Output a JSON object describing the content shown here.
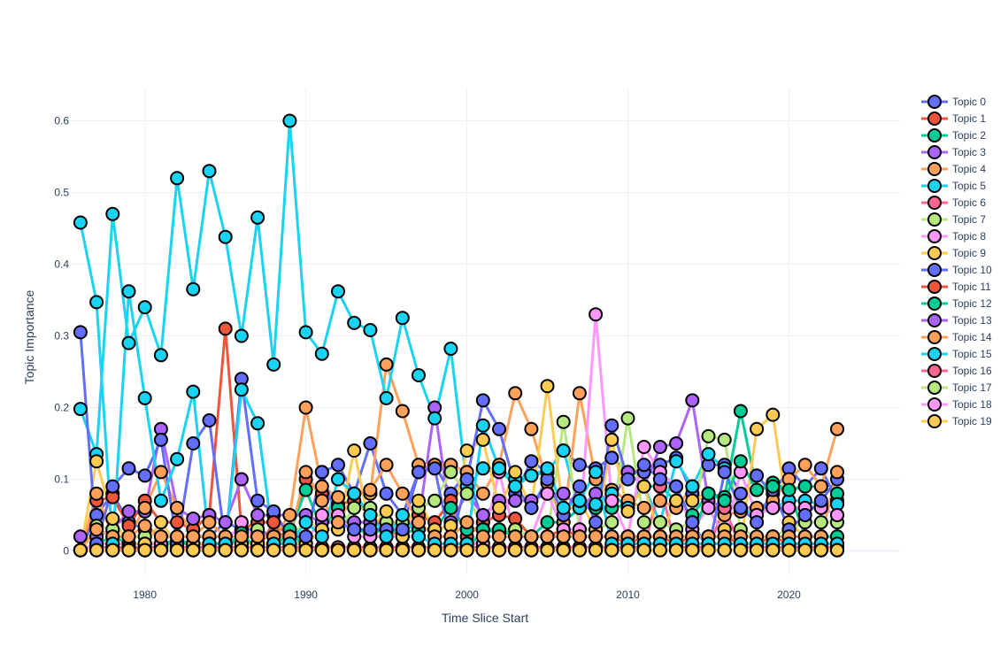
{
  "chart_data": {
    "type": "line",
    "title": "",
    "xlabel": "Time Slice Start",
    "ylabel": "Topic Importance",
    "xlim": [
      1975.4,
      2026.9
    ],
    "ylim": [
      -0.034,
      0.645
    ],
    "x_ticks": [
      1980,
      1990,
      2000,
      2010,
      2020
    ],
    "y_ticks": [
      0,
      0.1,
      0.2,
      0.3,
      0.4,
      0.5,
      0.6
    ],
    "x_tick_labels": [
      "1980",
      "1990",
      "2000",
      "2010",
      "2020"
    ],
    "y_tick_labels": [
      "0",
      "0.1",
      "0.2",
      "0.3",
      "0.4",
      "0.5",
      "0.6"
    ],
    "grid": true,
    "legend_position": "right",
    "x": [
      1976,
      1977,
      1978,
      1979,
      1980,
      1981,
      1982,
      1983,
      1984,
      1985,
      1986,
      1987,
      1988,
      1989,
      1990,
      1991,
      1992,
      1993,
      1994,
      1995,
      1996,
      1997,
      1998,
      1999,
      2000,
      2001,
      2002,
      2003,
      2004,
      2005,
      2006,
      2007,
      2008,
      2009,
      2010,
      2011,
      2012,
      2013,
      2014,
      2015,
      2016,
      2017,
      2018,
      2019,
      2020,
      2021,
      2022,
      2023
    ],
    "series": [
      {
        "name": "Topic 0",
        "color": "#636efa",
        "values": [
          0.001,
          0.05,
          0.08,
          0.04,
          0.03,
          0.02,
          0.02,
          0.02,
          0.02,
          0.04,
          0.03,
          0.03,
          0.02,
          0.02,
          0.02,
          0.11,
          0.12,
          0.08,
          0.15,
          0.08,
          0.05,
          0.11,
          0.12,
          0.08,
          0.11,
          0.04,
          0.05,
          0.08,
          0.125,
          0.11,
          0.14,
          0.12,
          0.115,
          0.13,
          0.11,
          0.11,
          0.12,
          0.13,
          0.08,
          0.12,
          0.12,
          0.08,
          0.105,
          0.08,
          0.115,
          0.09,
          0.115,
          0.07
        ]
      },
      {
        "name": "Topic 1",
        "color": "#ef553b",
        "values": [
          0.001,
          0.07,
          0.075,
          0.035,
          0.07,
          0.04,
          0.04,
          0.03,
          0.05,
          0.31,
          0.03,
          0.04,
          0.04,
          0.02,
          0.1,
          0.08,
          0.065,
          0.07,
          0.05,
          0.03,
          0.02,
          0.05,
          0.04,
          0.07,
          0.02,
          0.04,
          0.05,
          0.045,
          0.02,
          0.02,
          0.03,
          0.02,
          0.02,
          0.02,
          0.01,
          0.02,
          0.02,
          0.01,
          0.02,
          0.02,
          0.02,
          0.01,
          0.01,
          0.02,
          0.01,
          0.01,
          0.01,
          0.01
        ]
      },
      {
        "name": "Topic 2",
        "color": "#00cc96",
        "values": [
          0.001,
          0.01,
          0.02,
          0.01,
          0.01,
          0.01,
          0.015,
          0.01,
          0.01,
          0.01,
          0.02,
          0.02,
          0.02,
          0.025,
          0.085,
          0.03,
          0.06,
          0.03,
          0.025,
          0.03,
          0.025,
          0.03,
          0.03,
          0.06,
          0.03,
          0.03,
          0.025,
          0.03,
          0.02,
          0.04,
          0.04,
          0.06,
          0.06,
          0.06,
          0.065,
          0.09,
          0.09,
          0.07,
          0.05,
          0.08,
          0.075,
          0.195,
          0.085,
          0.095,
          0.085,
          0.09,
          0.09,
          0.08
        ]
      },
      {
        "name": "Topic 3",
        "color": "#ab63fa",
        "values": [
          0.02,
          0.02,
          0.03,
          0.055,
          0.055,
          0.17,
          0.06,
          0.045,
          0.05,
          0.04,
          0.1,
          0.05,
          0.05,
          0.05,
          0.05,
          0.04,
          0.04,
          0.04,
          0.04,
          0.04,
          0.04,
          0.04,
          0.2,
          0.04,
          0.08,
          0.05,
          0.07,
          0.07,
          0.07,
          0.08,
          0.08,
          0.06,
          0.08,
          0.07,
          0.11,
          0.09,
          0.145,
          0.15,
          0.21,
          0.07,
          0.06,
          0.06,
          0.06,
          0.06,
          0.06,
          0.06,
          0.06,
          0.05
        ]
      },
      {
        "name": "Topic 4",
        "color": "#ffa15a",
        "values": [
          0.001,
          0.08,
          0.02,
          0.02,
          0.06,
          0.11,
          0.06,
          0.02,
          0.02,
          0.02,
          0.03,
          0.02,
          0.02,
          0.05,
          0.2,
          0.09,
          0.075,
          0.08,
          0.08,
          0.26,
          0.195,
          0.12,
          0.12,
          0.12,
          0.11,
          0.08,
          0.12,
          0.22,
          0.17,
          0.095,
          0.04,
          0.22,
          0.1,
          0.085,
          0.07,
          0.06,
          0.07,
          0.06,
          0.09,
          0.06,
          0.05,
          0.055,
          0.06,
          0.07,
          0.1,
          0.12,
          0.09,
          0.17
        ]
      },
      {
        "name": "Topic 5",
        "color": "#19d3f3",
        "values": [
          0.198,
          0.135,
          0.47,
          0.29,
          0.34,
          0.273,
          0.52,
          0.365,
          0.53,
          0.438,
          0.3,
          0.465,
          0.26,
          0.6,
          0.305,
          0.275,
          0.362,
          0.318,
          0.308,
          0.213,
          0.325,
          0.245,
          0.185,
          0.282,
          0.09,
          0.115,
          0.115,
          0.1,
          0.105,
          0.11,
          0.14,
          0.06,
          0.065,
          0.08,
          0.06,
          0.09,
          0.04,
          0.125,
          0.09,
          0.135,
          0.115,
          0.06,
          0.05,
          0.06,
          0.07,
          0.07,
          0.065,
          0.065
        ]
      },
      {
        "name": "Topic 6",
        "color": "#ff6692",
        "values": [
          0.001,
          0.005,
          0.005,
          0.005,
          0.005,
          0.005,
          0.005,
          0.005,
          0.005,
          0.005,
          0.005,
          0.005,
          0.005,
          0.005,
          0.005,
          0.005,
          0.005,
          0.005,
          0.005,
          0.005,
          0.005,
          0.005,
          0.005,
          0.005,
          0.005,
          0.005,
          0.005,
          0.005,
          0.005,
          0.005,
          0.005,
          0.005,
          0.005,
          0.005,
          0.005,
          0.005,
          0.09,
          0.005,
          0.005,
          0.005,
          0.06,
          0.005,
          0.005,
          0.005,
          0.005,
          0.005,
          0.005,
          0.005
        ]
      },
      {
        "name": "Topic 7",
        "color": "#b6e880",
        "values": [
          0.001,
          0.035,
          0.03,
          0.02,
          0.02,
          0.001,
          0.01,
          0.01,
          0.01,
          0.01,
          0.01,
          0.03,
          0.01,
          0.02,
          0.04,
          0.03,
          0.03,
          0.06,
          0.06,
          0.04,
          0.04,
          0.06,
          0.07,
          0.11,
          0.08,
          0.03,
          0.03,
          0.03,
          0.02,
          0.02,
          0.18,
          0.03,
          0.03,
          0.04,
          0.185,
          0.04,
          0.04,
          0.03,
          0.04,
          0.16,
          0.155,
          0.03,
          0.02,
          0.02,
          0.03,
          0.04,
          0.04,
          0.04
        ]
      },
      {
        "name": "Topic 8",
        "color": "#ff97ff",
        "values": [
          0.001,
          0.01,
          0.01,
          0.01,
          0.01,
          0.01,
          0.01,
          0.01,
          0.01,
          0.01,
          0.04,
          0.01,
          0.01,
          0.01,
          0.01,
          0.05,
          0.05,
          0.02,
          0.02,
          0.02,
          0.02,
          0.02,
          0.01,
          0.01,
          0.01,
          0.01,
          0.11,
          0.02,
          0.02,
          0.08,
          0.03,
          0.03,
          0.33,
          0.07,
          0.02,
          0.145,
          0.11,
          0.09,
          0.03,
          0.06,
          0.02,
          0.11,
          0.05,
          0.06,
          0.06,
          0.06,
          0.06,
          0.05
        ]
      },
      {
        "name": "Topic 9",
        "color": "#fecb52",
        "values": [
          0.001,
          0.125,
          0.045,
          0.01,
          0.01,
          0.04,
          0.01,
          0.01,
          0.01,
          0.01,
          0.01,
          0.01,
          0.01,
          0.01,
          0.01,
          0.03,
          0.03,
          0.14,
          0.03,
          0.055,
          0.02,
          0.07,
          0.03,
          0.035,
          0.14,
          0.155,
          0.06,
          0.11,
          0.06,
          0.23,
          0.05,
          0.07,
          0.03,
          0.155,
          0.055,
          0.09,
          0.02,
          0.07,
          0.07,
          0.08,
          0.03,
          0.01,
          0.17,
          0.19,
          0.04,
          0.02,
          0.02,
          0.02
        ]
      },
      {
        "name": "Topic 10",
        "color": "#636efa",
        "values": [
          0.305,
          0.01,
          0.09,
          0.115,
          0.105,
          0.155,
          0.01,
          0.15,
          0.182,
          0.01,
          0.24,
          0.07,
          0.055,
          0.02,
          0.02,
          0.11,
          0.04,
          0.03,
          0.03,
          0.03,
          0.03,
          0.11,
          0.115,
          0.01,
          0.1,
          0.21,
          0.17,
          0.09,
          0.06,
          0.1,
          0.05,
          0.09,
          0.04,
          0.175,
          0.1,
          0.12,
          0.1,
          0.09,
          0.04,
          0.001,
          0.11,
          0.06,
          0.04,
          0.085,
          0.03,
          0.05,
          0.07,
          0.1
        ]
      },
      {
        "name": "Topic 11",
        "color": "#ef553b",
        "values": [
          0.001,
          0.001,
          0.001,
          0.005,
          0.001,
          0.001,
          0.001,
          0.001,
          0.001,
          0.001,
          0.001,
          0.001,
          0.04,
          0.001,
          0.001,
          0.001,
          0.001,
          0.001,
          0.001,
          0.001,
          0.001,
          0.001,
          0.001,
          0.001,
          0.001,
          0.001,
          0.001,
          0.001,
          0.001,
          0.001,
          0.001,
          0.001,
          0.001,
          0.001,
          0.001,
          0.001,
          0.001,
          0.001,
          0.001,
          0.001,
          0.001,
          0.001,
          0.001,
          0.001,
          0.001,
          0.001,
          0.001,
          0.001
        ]
      },
      {
        "name": "Topic 12",
        "color": "#00cc96",
        "values": [
          0.001,
          0.001,
          0.001,
          0.001,
          0.001,
          0.001,
          0.02,
          0.001,
          0.001,
          0.001,
          0.025,
          0.001,
          0.001,
          0.03,
          0.001,
          0.001,
          0.001,
          0.001,
          0.001,
          0.001,
          0.001,
          0.001,
          0.001,
          0.001,
          0.001,
          0.03,
          0.03,
          0.02,
          0.02,
          0.02,
          0.02,
          0.02,
          0.02,
          0.02,
          0.02,
          0.02,
          0.02,
          0.02,
          0.02,
          0.08,
          0.07,
          0.125,
          0.085,
          0.09,
          0.085,
          0.02,
          0.02,
          0.02
        ]
      },
      {
        "name": "Topic 13",
        "color": "#ab63fa",
        "values": [
          0.001,
          0.001,
          0.001,
          0.001,
          0.001,
          0.001,
          0.001,
          0.001,
          0.001,
          0.001,
          0.001,
          0.001,
          0.001,
          0.001,
          0.001,
          0.001,
          0.001,
          0.001,
          0.001,
          0.001,
          0.001,
          0.001,
          0.001,
          0.001,
          0.001,
          0.001,
          0.001,
          0.001,
          0.001,
          0.001,
          0.001,
          0.001,
          0.001,
          0.001,
          0.001,
          0.001,
          0.001,
          0.001,
          0.001,
          0.001,
          0.001,
          0.001,
          0.001,
          0.001,
          0.001,
          0.001,
          0.001,
          0.001
        ]
      },
      {
        "name": "Topic 14",
        "color": "#ffa15a",
        "values": [
          0.001,
          0.03,
          0.02,
          0.02,
          0.035,
          0.02,
          0.02,
          0.02,
          0.04,
          0.02,
          0.02,
          0.02,
          0.02,
          0.02,
          0.11,
          0.07,
          0.04,
          0.08,
          0.085,
          0.12,
          0.08,
          0.04,
          0.02,
          0.02,
          0.04,
          0.02,
          0.02,
          0.02,
          0.02,
          0.02,
          0.02,
          0.02,
          0.02,
          0.02,
          0.02,
          0.02,
          0.02,
          0.02,
          0.02,
          0.02,
          0.02,
          0.02,
          0.02,
          0.02,
          0.02,
          0.02,
          0.02,
          0.11
        ]
      },
      {
        "name": "Topic 15",
        "color": "#19d3f3",
        "values": [
          0.458,
          0.347,
          0.01,
          0.362,
          0.213,
          0.07,
          0.128,
          0.222,
          0.01,
          0.01,
          0.225,
          0.178,
          0.01,
          0.01,
          0.04,
          0.02,
          0.1,
          0.08,
          0.05,
          0.02,
          0.05,
          0.02,
          0.01,
          0.01,
          0.01,
          0.175,
          0.115,
          0.09,
          0.105,
          0.115,
          0.06,
          0.07,
          0.11,
          0.01,
          0.01,
          0.01,
          0.01,
          0.01,
          0.01,
          0.01,
          0.01,
          0.01,
          0.01,
          0.01,
          0.01,
          0.01,
          0.01,
          0.01
        ]
      },
      {
        "name": "Topic 16",
        "color": "#ff6692",
        "values": [
          0.001,
          0.001,
          0.001,
          0.001,
          0.001,
          0.001,
          0.001,
          0.001,
          0.001,
          0.001,
          0.001,
          0.001,
          0.001,
          0.001,
          0.001,
          0.001,
          0.001,
          0.001,
          0.001,
          0.001,
          0.001,
          0.001,
          0.001,
          0.001,
          0.001,
          0.001,
          0.001,
          0.001,
          0.001,
          0.001,
          0.001,
          0.001,
          0.001,
          0.001,
          0.001,
          0.001,
          0.001,
          0.001,
          0.001,
          0.001,
          0.001,
          0.001,
          0.001,
          0.001,
          0.001,
          0.001,
          0.001,
          0.001
        ]
      },
      {
        "name": "Topic 17",
        "color": "#b6e880",
        "values": [
          0.001,
          0.001,
          0.001,
          0.001,
          0.001,
          0.001,
          0.001,
          0.001,
          0.001,
          0.001,
          0.001,
          0.001,
          0.001,
          0.001,
          0.001,
          0.001,
          0.001,
          0.001,
          0.001,
          0.001,
          0.001,
          0.001,
          0.001,
          0.001,
          0.001,
          0.001,
          0.001,
          0.001,
          0.001,
          0.001,
          0.001,
          0.001,
          0.001,
          0.001,
          0.001,
          0.001,
          0.001,
          0.001,
          0.001,
          0.001,
          0.001,
          0.001,
          0.001,
          0.001,
          0.001,
          0.001,
          0.001,
          0.001
        ]
      },
      {
        "name": "Topic 18",
        "color": "#ff97ff",
        "values": [
          0.001,
          0.001,
          0.001,
          0.001,
          0.001,
          0.001,
          0.001,
          0.001,
          0.001,
          0.001,
          0.001,
          0.001,
          0.001,
          0.001,
          0.001,
          0.001,
          0.001,
          0.001,
          0.001,
          0.001,
          0.001,
          0.001,
          0.001,
          0.001,
          0.001,
          0.001,
          0.001,
          0.001,
          0.001,
          0.001,
          0.001,
          0.001,
          0.001,
          0.001,
          0.001,
          0.001,
          0.001,
          0.001,
          0.001,
          0.001,
          0.001,
          0.001,
          0.001,
          0.001,
          0.001,
          0.001,
          0.001,
          0.001
        ]
      },
      {
        "name": "Topic 19",
        "color": "#fecb52",
        "values": [
          0.001,
          0.001,
          0.001,
          0.001,
          0.001,
          0.001,
          0.001,
          0.001,
          0.001,
          0.001,
          0.001,
          0.001,
          0.001,
          0.001,
          0.001,
          0.001,
          0.001,
          0.001,
          0.001,
          0.001,
          0.001,
          0.001,
          0.001,
          0.001,
          0.001,
          0.001,
          0.001,
          0.001,
          0.001,
          0.001,
          0.001,
          0.001,
          0.001,
          0.001,
          0.001,
          0.001,
          0.001,
          0.001,
          0.001,
          0.001,
          0.001,
          0.001,
          0.001,
          0.001,
          0.001,
          0.001,
          0.001,
          0.001
        ]
      }
    ]
  }
}
